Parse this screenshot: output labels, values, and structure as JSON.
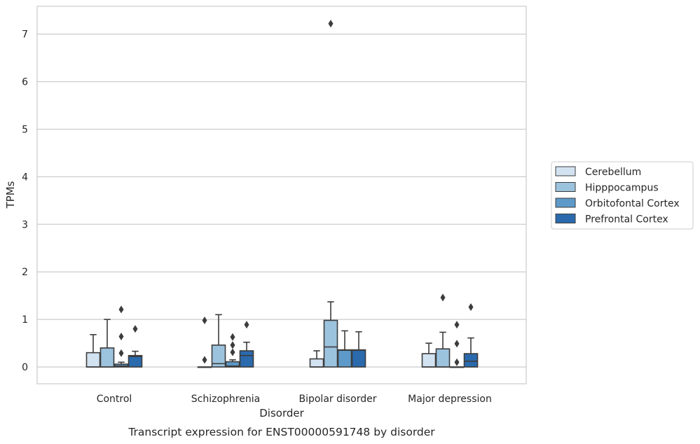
{
  "chart_data": {
    "type": "box",
    "xlabel": "Disorder",
    "ylabel": "TPMs",
    "caption": "Transcript expression for ENST00000591748 by disorder",
    "categories": [
      "Control",
      "Schizophrenia",
      "Bipolar disorder",
      "Major depression"
    ],
    "ylim": [
      -0.35,
      7.6
    ],
    "yticks": [
      0,
      1,
      2,
      3,
      4,
      5,
      6,
      7
    ],
    "grid": "horizontal",
    "legend_position": "right",
    "series": [
      {
        "name": "Cerebellum",
        "color": "#d2e2f0",
        "boxes": [
          {
            "whisker_low": 0,
            "q1": 0,
            "median": 0,
            "q3": 0.3,
            "whisker_high": 0.68,
            "outliers": []
          },
          {
            "whisker_low": 0,
            "q1": 0,
            "median": 0,
            "q3": 0,
            "whisker_high": 0,
            "outliers": [
              0.15,
              0.98
            ]
          },
          {
            "whisker_low": 0,
            "q1": 0,
            "median": 0,
            "q3": 0.17,
            "whisker_high": 0.34,
            "outliers": []
          },
          {
            "whisker_low": 0,
            "q1": 0,
            "median": 0,
            "q3": 0.28,
            "whisker_high": 0.5,
            "outliers": []
          }
        ]
      },
      {
        "name": "Hipppocampus",
        "color": "#9cc3de",
        "boxes": [
          {
            "whisker_low": 0,
            "q1": 0,
            "median": 0,
            "q3": 0.4,
            "whisker_high": 1.0,
            "outliers": []
          },
          {
            "whisker_low": 0,
            "q1": 0,
            "median": 0.07,
            "q3": 0.46,
            "whisker_high": 1.1,
            "outliers": []
          },
          {
            "whisker_low": 0,
            "q1": 0,
            "median": 0.42,
            "q3": 0.98,
            "whisker_high": 1.37,
            "outliers": [
              7.22
            ]
          },
          {
            "whisker_low": 0,
            "q1": 0,
            "median": 0,
            "q3": 0.38,
            "whisker_high": 0.73,
            "outliers": [
              1.46
            ]
          }
        ]
      },
      {
        "name": "Orbitofontal Cortex",
        "color": "#5d9ac9",
        "boxes": [
          {
            "whisker_low": 0,
            "q1": 0,
            "median": 0.02,
            "q3": 0.06,
            "whisker_high": 0.1,
            "outliers": [
              0.29,
              0.64,
              1.21
            ]
          },
          {
            "whisker_low": 0,
            "q1": 0,
            "median": 0.02,
            "q3": 0.11,
            "whisker_high": 0.15,
            "outliers": [
              0.31,
              0.46,
              0.63
            ]
          },
          {
            "whisker_low": 0,
            "q1": 0,
            "median": 0.35,
            "q3": 0.36,
            "whisker_high": 0.76,
            "outliers": []
          },
          {
            "whisker_low": 0,
            "q1": 0,
            "median": 0,
            "q3": 0,
            "whisker_high": 0,
            "outliers": [
              0.1,
              0.49,
              0.89
            ]
          }
        ]
      },
      {
        "name": "Prefrontal Cortex",
        "color": "#2a6aad",
        "boxes": [
          {
            "whisker_low": 0,
            "q1": 0,
            "median": 0.22,
            "q3": 0.24,
            "whisker_high": 0.33,
            "outliers": [
              0.8
            ]
          },
          {
            "whisker_low": 0,
            "q1": 0,
            "median": 0.24,
            "q3": 0.34,
            "whisker_high": 0.52,
            "outliers": [
              0.89
            ]
          },
          {
            "whisker_low": 0,
            "q1": 0,
            "median": 0.35,
            "q3": 0.36,
            "whisker_high": 0.74,
            "outliers": []
          },
          {
            "whisker_low": 0,
            "q1": 0,
            "median": 0.12,
            "q3": 0.28,
            "whisker_high": 0.61,
            "outliers": [
              1.26
            ]
          }
        ]
      }
    ]
  }
}
